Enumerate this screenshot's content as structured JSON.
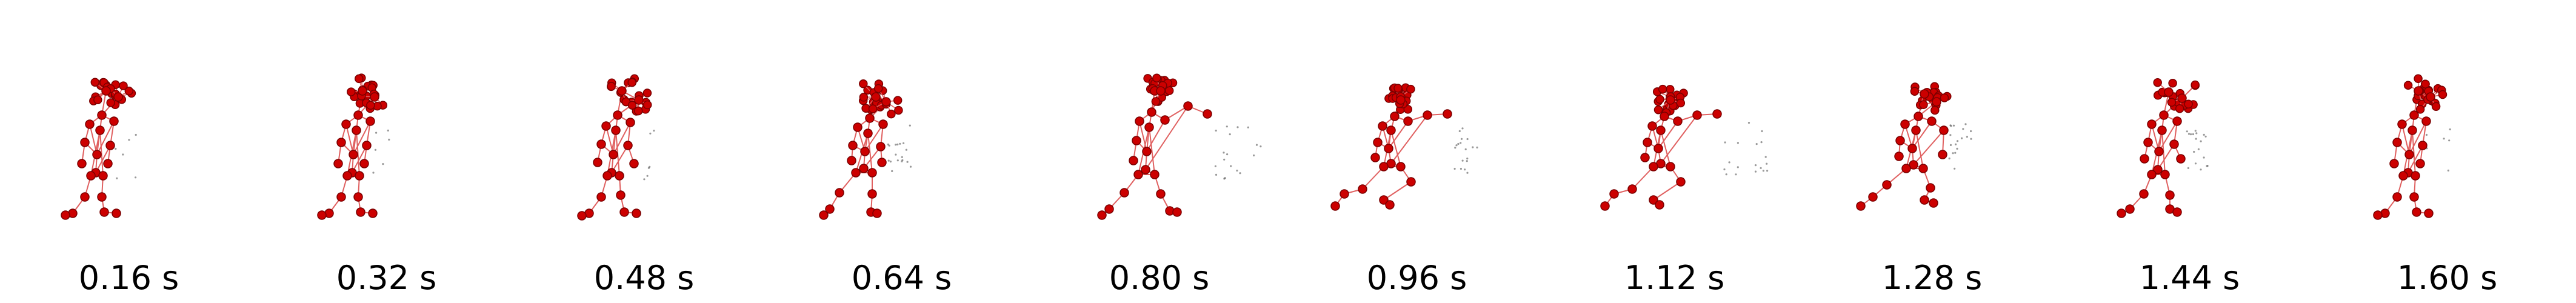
{
  "frames": [
    {
      "time_label": "0.16 s",
      "pose": "idle-stand"
    },
    {
      "time_label": "0.32 s",
      "pose": "idle-stand"
    },
    {
      "time_label": "0.48 s",
      "pose": "stand-shift"
    },
    {
      "time_label": "0.64 s",
      "pose": "step-back"
    },
    {
      "time_label": "0.80 s",
      "pose": "arm-extend"
    },
    {
      "time_label": "0.96 s",
      "pose": "lunge-punch"
    },
    {
      "time_label": "1.12 s",
      "pose": "lunge-punch"
    },
    {
      "time_label": "1.28 s",
      "pose": "recover"
    },
    {
      "time_label": "1.44 s",
      "pose": "return-stand"
    },
    {
      "time_label": "1.60 s",
      "pose": "idle-stand"
    }
  ],
  "colors": {
    "joint": "#cc0000",
    "joint_outline": "#7a0000",
    "bone": "#e06060",
    "trace": "#555555",
    "caption": "#000000"
  }
}
